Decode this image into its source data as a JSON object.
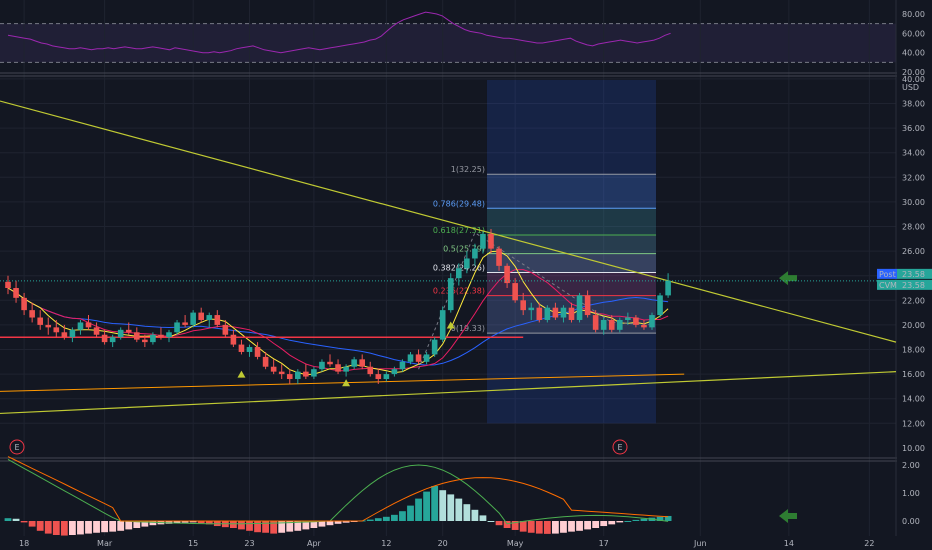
{
  "chart_data": [
    {
      "type": "line",
      "name": "",
      "y_ticks": [
        "80.00",
        "60.00",
        "40.00",
        "20.00"
      ],
      "ylim": [
        20,
        80
      ],
      "levels": [
        70,
        30
      ],
      "values": [
        58,
        57,
        56,
        55,
        54,
        52,
        50,
        49,
        47,
        46,
        45,
        44,
        44,
        45,
        44,
        43,
        44,
        44,
        45,
        44,
        45,
        46,
        45,
        44,
        44,
        45,
        46,
        45,
        44,
        43,
        45,
        44,
        43,
        42,
        41,
        40,
        40,
        41,
        40,
        41,
        42,
        44,
        45,
        46,
        47,
        45,
        43,
        42,
        41,
        40,
        41,
        42,
        43,
        44,
        45,
        44,
        43,
        44,
        45,
        46,
        47,
        48,
        49,
        50,
        51,
        53,
        54,
        57,
        62,
        67,
        71,
        74,
        76,
        78,
        80,
        82,
        81,
        80,
        78,
        74,
        70,
        67,
        64,
        62,
        61,
        60,
        58,
        57,
        56,
        55,
        55,
        54,
        53,
        52,
        51,
        50,
        50,
        51,
        52,
        53,
        54,
        55,
        52,
        50,
        48,
        47,
        49,
        50,
        51,
        52,
        53,
        52,
        51,
        50,
        51,
        52,
        53,
        55,
        58,
        60
      ]
    },
    {
      "type": "candlestick",
      "currency": "USD",
      "y_ticks": [
        "40.00",
        "38.00",
        "36.00",
        "34.00",
        "32.00",
        "30.00",
        "28.00",
        "26.00",
        "24.00",
        "22.00",
        "20.00",
        "18.00",
        "16.00",
        "14.00",
        "12.00"
      ],
      "ylim": [
        11,
        41
      ],
      "x_ticks": [
        "18",
        "Mar",
        "15",
        "23",
        "Apr",
        "12",
        "20",
        "May",
        "17",
        "Jun",
        "14",
        "22"
      ],
      "price_labels": [
        {
          "name": "Post",
          "value": "23.58"
        },
        {
          "name": "CVM",
          "value": "23.58"
        }
      ],
      "fib_levels": [
        {
          "label": "1(32.25)",
          "value": 32.25,
          "color": "#9598a1"
        },
        {
          "label": "0.786(29.48)",
          "value": 29.48,
          "color": "#5b9cf6"
        },
        {
          "label": "0.618(27.31)",
          "value": 27.31,
          "color": "#4caf50"
        },
        {
          "label": "0.5(25.79)",
          "value": 25.79,
          "color": "#81c784"
        },
        {
          "label": "0.382(24.26)",
          "value": 24.26,
          "color": "#e0e3eb"
        },
        {
          "label": "0.236(22.38)",
          "value": 22.38,
          "color": "#f23645"
        },
        {
          "label": "0(19.33)",
          "value": 19.33,
          "color": "#9598a1"
        }
      ],
      "candles": [
        [
          23.5,
          24.0,
          22.5,
          23.0
        ],
        [
          23.0,
          23.6,
          21.8,
          22.2
        ],
        [
          22.2,
          22.6,
          20.8,
          21.2
        ],
        [
          21.2,
          21.8,
          20.2,
          20.6
        ],
        [
          20.6,
          21.2,
          19.6,
          20.0
        ],
        [
          20.0,
          20.6,
          19.2,
          19.8
        ],
        [
          19.8,
          20.4,
          19.0,
          19.4
        ],
        [
          19.4,
          20.0,
          18.8,
          19.0
        ],
        [
          19.0,
          19.8,
          18.6,
          19.6
        ],
        [
          19.6,
          20.4,
          19.2,
          20.2
        ],
        [
          20.2,
          20.8,
          19.6,
          19.8
        ],
        [
          19.8,
          20.2,
          19.0,
          19.2
        ],
        [
          19.2,
          19.6,
          18.4,
          18.6
        ],
        [
          18.6,
          19.2,
          18.2,
          19.0
        ],
        [
          19.0,
          19.8,
          18.8,
          19.6
        ],
        [
          19.6,
          20.2,
          19.2,
          19.4
        ],
        [
          19.4,
          19.8,
          18.6,
          18.8
        ],
        [
          18.8,
          19.2,
          18.2,
          18.6
        ],
        [
          18.6,
          19.4,
          18.4,
          19.2
        ],
        [
          19.2,
          19.8,
          18.8,
          19.0
        ],
        [
          19.0,
          19.6,
          18.6,
          19.4
        ],
        [
          19.4,
          20.4,
          19.2,
          20.2
        ],
        [
          20.2,
          20.8,
          19.8,
          20.0
        ],
        [
          20.0,
          21.2,
          19.8,
          21.0
        ],
        [
          21.0,
          21.4,
          20.2,
          20.4
        ],
        [
          20.4,
          21.0,
          19.8,
          20.8
        ],
        [
          20.8,
          21.2,
          19.8,
          20.0
        ],
        [
          20.0,
          20.4,
          19.0,
          19.2
        ],
        [
          19.2,
          19.6,
          18.2,
          18.4
        ],
        [
          18.4,
          18.8,
          17.6,
          17.8
        ],
        [
          17.8,
          18.4,
          17.4,
          18.2
        ],
        [
          18.2,
          18.6,
          17.2,
          17.4
        ],
        [
          17.4,
          17.8,
          16.4,
          16.6
        ],
        [
          16.6,
          17.2,
          16.0,
          16.2
        ],
        [
          16.2,
          16.8,
          15.6,
          16.0
        ],
        [
          16.0,
          16.4,
          15.2,
          15.6
        ],
        [
          15.6,
          16.4,
          15.2,
          16.2
        ],
        [
          16.2,
          16.8,
          15.6,
          15.8
        ],
        [
          15.8,
          16.6,
          15.6,
          16.4
        ],
        [
          16.4,
          17.2,
          16.2,
          17.0
        ],
        [
          17.0,
          17.6,
          16.6,
          16.8
        ],
        [
          16.8,
          17.2,
          16.0,
          16.2
        ],
        [
          16.2,
          16.8,
          15.8,
          16.6
        ],
        [
          16.6,
          17.4,
          16.4,
          17.2
        ],
        [
          17.2,
          17.6,
          16.4,
          16.6
        ],
        [
          16.6,
          17.0,
          15.8,
          16.0
        ],
        [
          16.0,
          16.4,
          15.2,
          15.6
        ],
        [
          15.6,
          16.2,
          15.4,
          16.0
        ],
        [
          16.0,
          16.6,
          15.8,
          16.4
        ],
        [
          16.4,
          17.2,
          16.2,
          17.0
        ],
        [
          17.0,
          17.8,
          16.8,
          17.6
        ],
        [
          17.6,
          18.0,
          16.8,
          17.0
        ],
        [
          17.0,
          17.8,
          16.8,
          17.6
        ],
        [
          17.6,
          19.0,
          17.4,
          18.8
        ],
        [
          18.8,
          21.5,
          18.6,
          21.2
        ],
        [
          21.2,
          24.2,
          21.0,
          23.8
        ],
        [
          23.8,
          25.0,
          23.2,
          24.6
        ],
        [
          24.6,
          26.0,
          24.2,
          25.4
        ],
        [
          25.4,
          26.6,
          24.8,
          26.2
        ],
        [
          26.2,
          27.6,
          25.8,
          27.4
        ],
        [
          27.4,
          27.8,
          25.8,
          26.2
        ],
        [
          26.2,
          26.4,
          24.4,
          24.8
        ],
        [
          24.8,
          25.0,
          23.0,
          23.4
        ],
        [
          23.4,
          23.8,
          21.8,
          22.0
        ],
        [
          22.0,
          22.6,
          20.8,
          21.2
        ],
        [
          21.2,
          21.8,
          20.4,
          21.4
        ],
        [
          21.4,
          21.8,
          20.2,
          20.4
        ],
        [
          20.4,
          21.6,
          20.2,
          21.4
        ],
        [
          21.4,
          21.8,
          20.4,
          20.6
        ],
        [
          20.6,
          21.6,
          20.2,
          21.4
        ],
        [
          21.4,
          21.8,
          20.2,
          20.4
        ],
        [
          20.4,
          22.6,
          20.2,
          22.4
        ],
        [
          22.4,
          22.8,
          20.6,
          20.8
        ],
        [
          20.8,
          21.2,
          19.4,
          19.6
        ],
        [
          19.6,
          20.6,
          19.2,
          20.4
        ],
        [
          20.4,
          20.8,
          19.4,
          19.6
        ],
        [
          19.6,
          20.6,
          19.4,
          20.4
        ],
        [
          20.4,
          21.0,
          20.0,
          20.6
        ],
        [
          20.6,
          20.8,
          19.8,
          20.0
        ],
        [
          20.0,
          20.4,
          19.6,
          19.8
        ],
        [
          19.8,
          21.0,
          19.6,
          20.8
        ],
        [
          20.8,
          22.6,
          20.6,
          22.4
        ],
        [
          22.4,
          24.2,
          22.2,
          23.58
        ]
      ]
    },
    {
      "type": "bar",
      "name": "",
      "y_ticks": [
        "2.00",
        "1.00",
        "0.00"
      ],
      "ylim": [
        -0.3,
        2.2
      ],
      "histogram": [
        0.1,
        0.08,
        -0.05,
        -0.2,
        -0.35,
        -0.45,
        -0.5,
        -0.52,
        -0.5,
        -0.48,
        -0.45,
        -0.42,
        -0.4,
        -0.38,
        -0.35,
        -0.3,
        -0.25,
        -0.2,
        -0.15,
        -0.12,
        -0.1,
        -0.08,
        -0.06,
        -0.05,
        -0.08,
        -0.12,
        -0.18,
        -0.22,
        -0.25,
        -0.3,
        -0.35,
        -0.4,
        -0.42,
        -0.45,
        -0.42,
        -0.38,
        -0.35,
        -0.3,
        -0.25,
        -0.2,
        -0.15,
        -0.1,
        -0.06,
        -0.02,
        0.02,
        0.05,
        0.1,
        0.15,
        0.22,
        0.35,
        0.55,
        0.8,
        1.05,
        1.25,
        1.1,
        0.95,
        0.8,
        0.6,
        0.4,
        0.2,
        0.0,
        -0.15,
        -0.25,
        -0.32,
        -0.38,
        -0.42,
        -0.45,
        -0.46,
        -0.45,
        -0.42,
        -0.38,
        -0.35,
        -0.3,
        -0.25,
        -0.18,
        -0.12,
        -0.05,
        0.0,
        0.04,
        0.08,
        0.12,
        0.15,
        0.18
      ]
    }
  ]
}
